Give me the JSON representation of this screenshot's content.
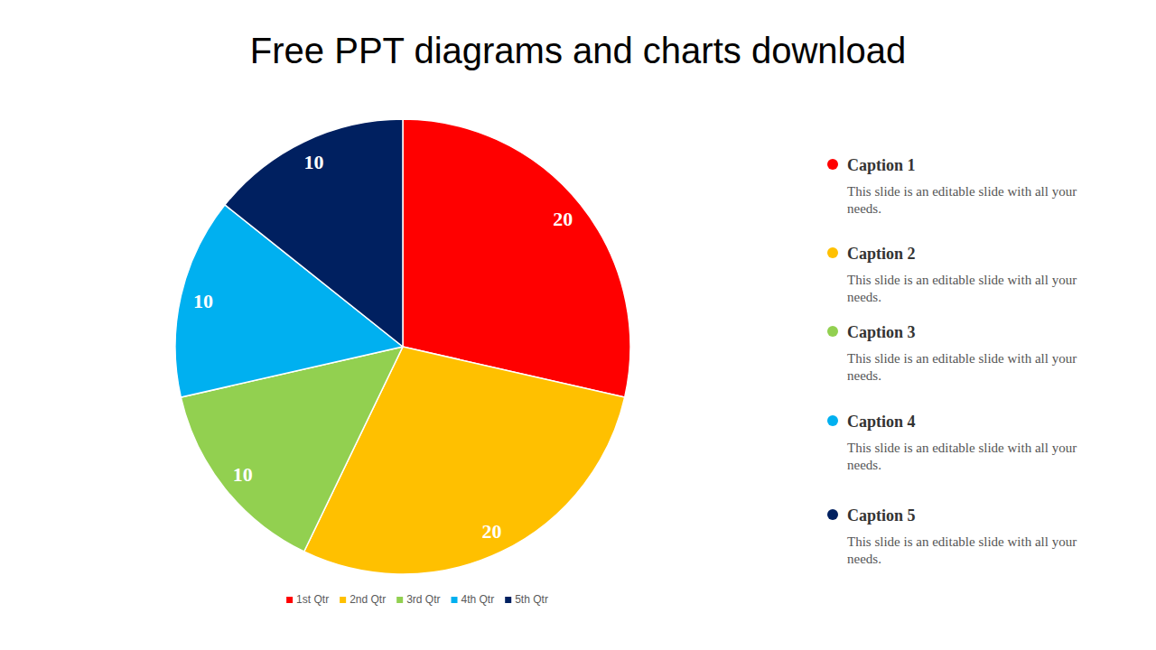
{
  "chart_data": {
    "type": "pie",
    "title": "Free PPT diagrams and charts download",
    "categories": [
      "1st Qtr",
      "2nd Qtr",
      "3rd Qtr",
      "4th Qtr",
      "5th Qtr"
    ],
    "values": [
      20,
      20,
      10,
      10,
      10
    ],
    "colors": [
      "#ff0000",
      "#ffc000",
      "#92d050",
      "#00b0f0",
      "#002060"
    ],
    "data_labels": true,
    "legend": "bottom"
  },
  "side_panel": {
    "items": [
      {
        "title": "Caption 1",
        "text": "This slide is an editable slide with all your needs."
      },
      {
        "title": "Caption 2",
        "text": "This slide is an editable slide with all your needs."
      },
      {
        "title": "Caption 3",
        "text": "This slide is an editable slide with all your needs."
      },
      {
        "title": "Caption 4",
        "text": "This slide is an editable slide with all your needs."
      },
      {
        "title": "Caption 5",
        "text": "This slide is an editable slide with all your needs."
      }
    ]
  }
}
